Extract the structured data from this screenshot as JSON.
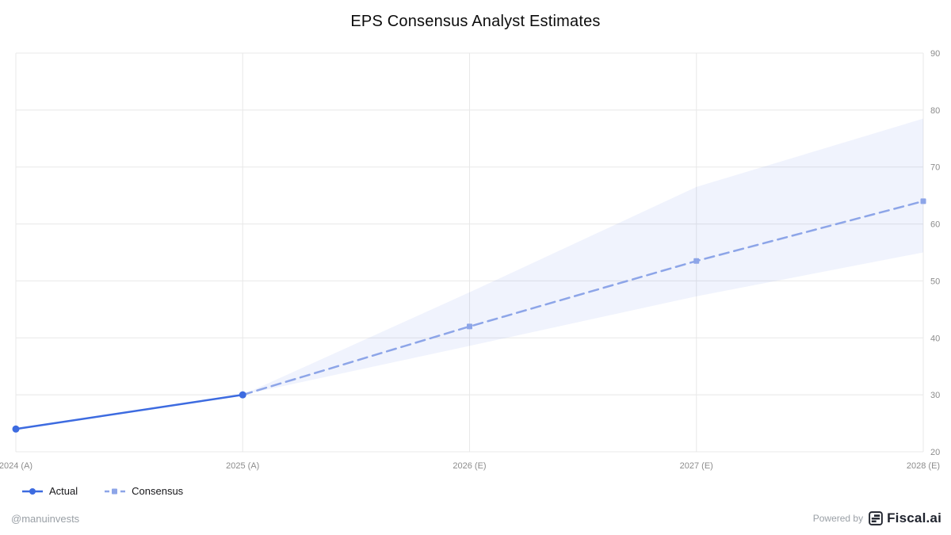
{
  "title": "EPS Consensus Analyst Estimates",
  "chart_data": {
    "type": "line",
    "title": "EPS Consensus Analyst Estimates",
    "categories": [
      "2024 (A)",
      "2025 (A)",
      "2026 (E)",
      "2027 (E)",
      "2028 (E)"
    ],
    "series": [
      {
        "name": "Actual",
        "style": "solid",
        "marker": "circle",
        "color": "#3d6be0",
        "values": [
          24,
          30,
          null,
          null,
          null
        ]
      },
      {
        "name": "Consensus",
        "style": "dashed",
        "marker": "square",
        "color": "#8da5e8",
        "values": [
          null,
          30,
          42,
          53.5,
          64
        ]
      }
    ],
    "band": {
      "name": "consensus-estimate-range",
      "color": "#3d6be0",
      "opacity": 0.08,
      "upper": [
        null,
        30,
        48,
        66.5,
        78.5
      ],
      "lower": [
        null,
        30,
        38.6,
        47.3,
        55
      ]
    },
    "ylim": [
      20,
      90
    ],
    "y_ticks": [
      20,
      30,
      40,
      50,
      60,
      70,
      80,
      90
    ],
    "y_axis_side": "right",
    "grid": true,
    "legend_position": "bottom-left"
  },
  "legend": {
    "items": [
      {
        "label": "Actual"
      },
      {
        "label": "Consensus"
      }
    ]
  },
  "footer": {
    "handle": "@manuinvests",
    "powered_by": "Powered by",
    "brand": "Fiscal.ai"
  },
  "colors": {
    "actual_line": "#3d6be0",
    "consensus_line": "#8da5e8",
    "band_fill": "#e9effc",
    "grid": "#e8e8e8",
    "tick_text": "#8c8c8c",
    "footer_text": "#9aa0a6",
    "brand_text": "#20242e"
  }
}
